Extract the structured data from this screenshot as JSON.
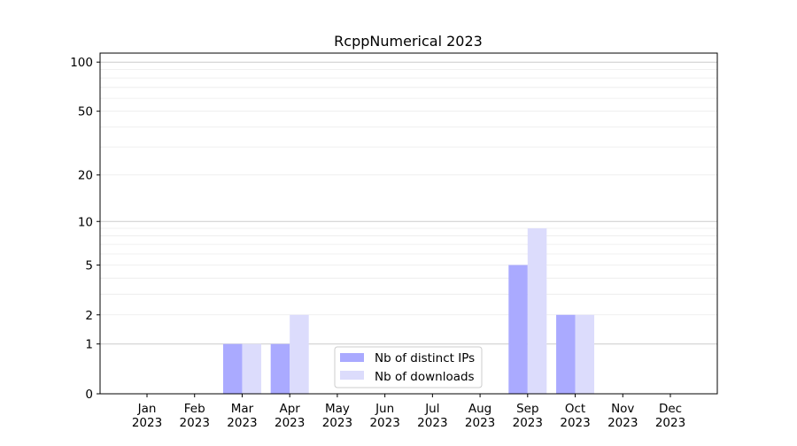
{
  "chart_data": {
    "type": "bar",
    "title": "RcppNumerical 2023",
    "xlabel": "",
    "ylabel": "",
    "yscale": "symlog (log10(1+y))",
    "ylim": [
      0,
      113
    ],
    "grid": "horizontal, major and minor",
    "legend_position": "lower-center",
    "categories": [
      "Jan\n2023",
      "Feb\n2023",
      "Mar\n2023",
      "Apr\n2023",
      "May\n2023",
      "Jun\n2023",
      "Jul\n2023",
      "Aug\n2023",
      "Sep\n2023",
      "Oct\n2023",
      "Nov\n2023",
      "Dec\n2023"
    ],
    "category_labels": [
      [
        "Jan",
        "2023"
      ],
      [
        "Feb",
        "2023"
      ],
      [
        "Mar",
        "2023"
      ],
      [
        "Apr",
        "2023"
      ],
      [
        "May",
        "2023"
      ],
      [
        "Jun",
        "2023"
      ],
      [
        "Jul",
        "2023"
      ],
      [
        "Aug",
        "2023"
      ],
      [
        "Sep",
        "2023"
      ],
      [
        "Oct",
        "2023"
      ],
      [
        "Nov",
        "2023"
      ],
      [
        "Dec",
        "2023"
      ]
    ],
    "yticks": [
      0,
      1,
      2,
      5,
      10,
      20,
      50,
      100
    ],
    "series": [
      {
        "name": "Nb of distinct IPs",
        "color": "#aaaaff",
        "values": [
          0,
          0,
          1,
          1,
          0,
          0,
          0,
          0,
          5,
          2,
          0,
          0
        ]
      },
      {
        "name": "Nb of downloads",
        "color": "#dcdcfc",
        "values": [
          0,
          0,
          1,
          2,
          0,
          0,
          0,
          0,
          9,
          2,
          0,
          0
        ]
      }
    ]
  }
}
